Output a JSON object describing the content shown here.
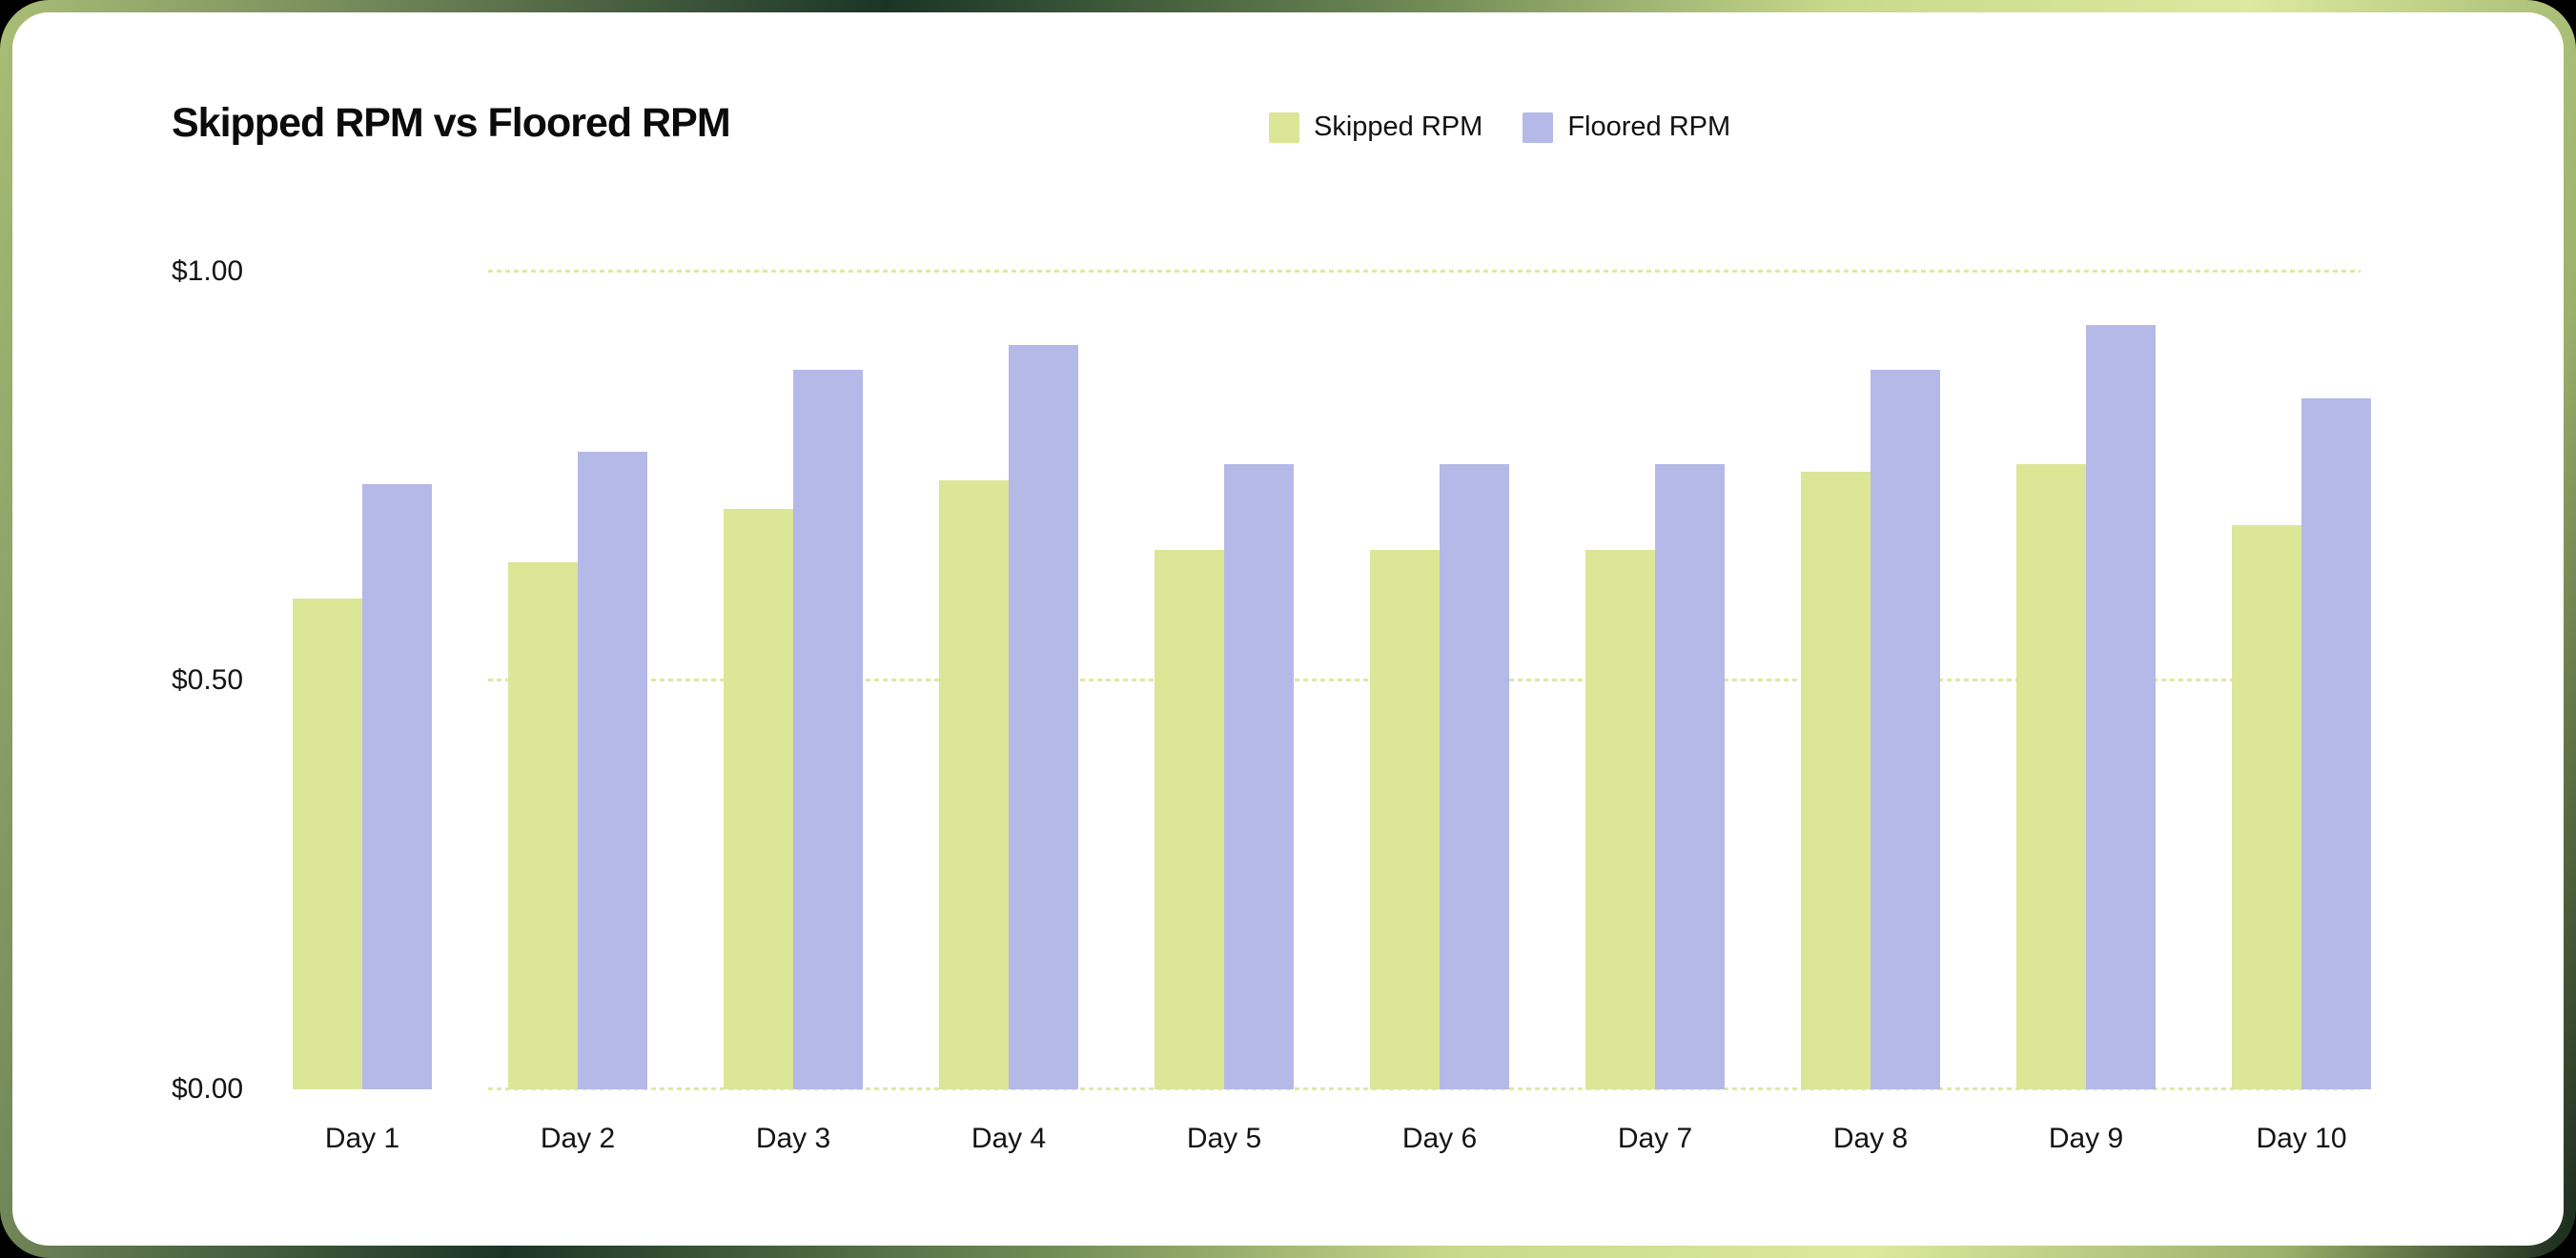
{
  "chart_data": {
    "type": "bar",
    "title": "Skipped RPM vs Floored RPM",
    "categories": [
      "Day 1",
      "Day 2",
      "Day 3",
      "Day 4",
      "Day 5",
      "Day 6",
      "Day 7",
      "Day 8",
      "Day 9",
      "Day 10"
    ],
    "series": [
      {
        "name": "Skipped RPM",
        "color": "#dbe697",
        "values": [
          0.6,
          0.645,
          0.71,
          0.745,
          0.66,
          0.66,
          0.66,
          0.755,
          0.765,
          0.69
        ]
      },
      {
        "name": "Floored RPM",
        "color": "#b4b9e7",
        "values": [
          0.74,
          0.78,
          0.88,
          0.91,
          0.765,
          0.765,
          0.765,
          0.88,
          0.935,
          0.845
        ]
      }
    ],
    "xlabel": "",
    "ylabel": "",
    "ylim": [
      0,
      1.0
    ],
    "y_ticks": [
      {
        "label": "$1.00",
        "value": 1.0
      },
      {
        "label": "$0.50",
        "value": 0.5
      },
      {
        "label": "$0.00",
        "value": 0.0
      }
    ],
    "grid": "horizontal-dashed",
    "legend_position": "top-center"
  },
  "colors": {
    "card_background": "#ffffff",
    "gridline": "#dde9a2",
    "text": "#141414",
    "title_text": "#0b0b0b",
    "skipped_bar": "#dbe697",
    "floored_bar": "#b4b9e7",
    "frame_gradient": [
      "#aabe76",
      "#1b3426",
      "#c9d98b",
      "#dde99e",
      "#16281a"
    ]
  }
}
